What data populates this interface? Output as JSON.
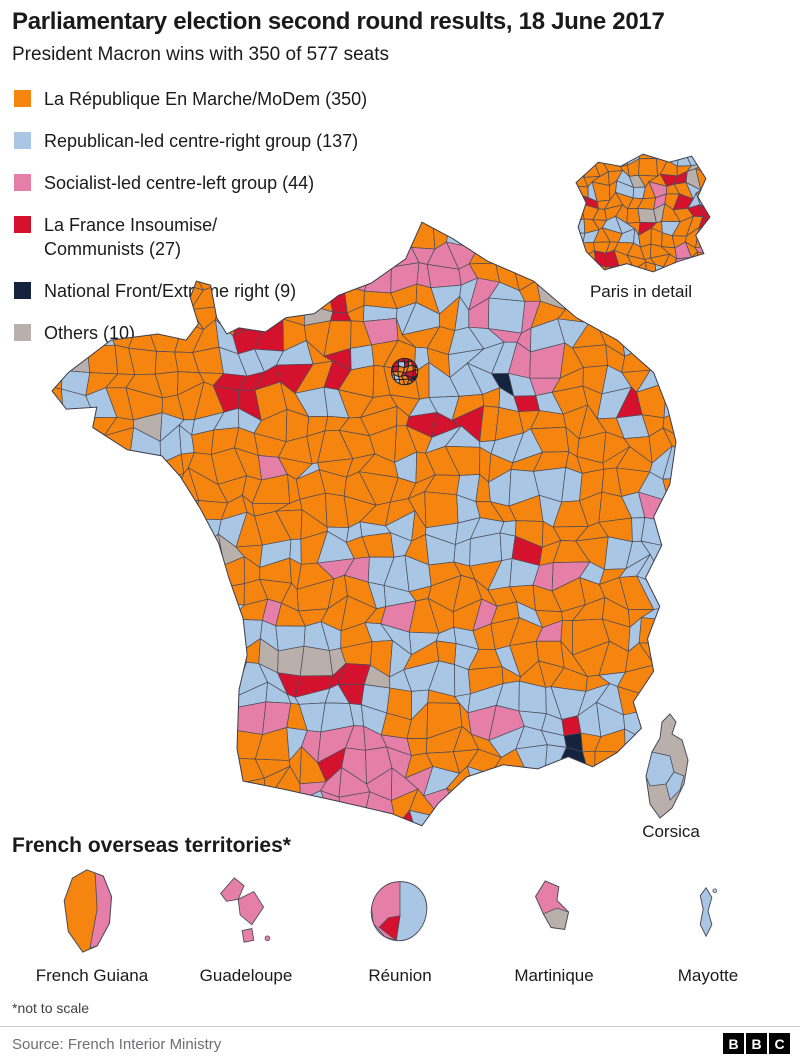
{
  "header": {
    "title": "Parliamentary election second round results, 18 June 2017",
    "subtitle": "President Macron wins with 350 of 577 seats"
  },
  "legend": {
    "items": [
      {
        "label": "La République En Marche/MoDem (350)",
        "party": "La République En Marche/MoDem",
        "seats": 350,
        "color": "#F6850F"
      },
      {
        "label": "Republican-led centre-right group (137)",
        "party": "Republican-led centre-right group",
        "seats": 137,
        "color": "#A9C6E4"
      },
      {
        "label": "Socialist-led centre-left group (44)",
        "party": "Socialist-led centre-left group",
        "seats": 44,
        "color": "#E57FA8"
      },
      {
        "label": "La France Insoumise/\nCommunists (27)",
        "party": "La France Insoumise/Communists",
        "seats": 27,
        "color": "#D5122D"
      },
      {
        "label": "National Front/Extreme right (9)",
        "party": "National Front/Extreme right",
        "seats": 9,
        "color": "#15233F"
      },
      {
        "label": "Others (10)",
        "party": "Others",
        "seats": 10,
        "color": "#B9B0AB"
      }
    ]
  },
  "map": {
    "paris_caption": "Paris in detail",
    "corsica_label": "Corsica"
  },
  "territories": {
    "heading": "French overseas territories*",
    "names": [
      "French Guiana",
      "Guadeloupe",
      "Réunion",
      "Martinique",
      "Mayotte"
    ],
    "footnote": "*not to scale"
  },
  "footer": {
    "source": "Source: French Interior Ministry",
    "logo": [
      "B",
      "B",
      "C"
    ]
  },
  "chart_data": {
    "type": "choropleth-map",
    "title": "Parliamentary election second round results, 18 June 2017",
    "subtitle": "President Macron wins with 350 of 577 seats",
    "total_seats": 577,
    "winner": {
      "party": "La République En Marche/MoDem",
      "seats": 350
    },
    "categories": [
      "La République En Marche/MoDem",
      "Republican-led centre-right group",
      "Socialist-led centre-left group",
      "La France Insoumise/Communists",
      "National Front/Extreme right",
      "Others"
    ],
    "values": [
      350,
      137,
      44,
      27,
      9,
      10
    ],
    "colors": [
      "#F6850F",
      "#A9C6E4",
      "#E57FA8",
      "#D5122D",
      "#15233F",
      "#B9B0AB"
    ],
    "regions_shown": [
      "Mainland France",
      "Paris in detail",
      "Corsica",
      "French Guiana",
      "Guadeloupe",
      "Réunion",
      "Martinique",
      "Mayotte"
    ],
    "legend_position": "top-left",
    "source": "French Interior Ministry"
  }
}
